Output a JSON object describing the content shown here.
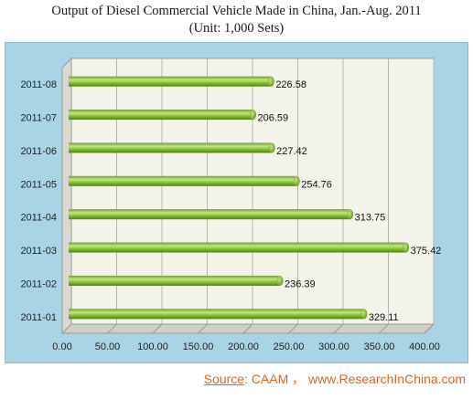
{
  "chart_data": {
    "type": "bar",
    "orientation": "horizontal",
    "title": "Output of Diesel Commercial Vehicle Made in China, Jan.-Aug. 2011",
    "subtitle": "(Unit: 1,000 Sets)",
    "categories": [
      "2011-08",
      "2011-07",
      "2011-06",
      "2011-05",
      "2011-04",
      "2011-03",
      "2011-02",
      "2011-01"
    ],
    "values": [
      226.58,
      206.59,
      227.42,
      254.76,
      313.75,
      375.42,
      236.39,
      329.11
    ],
    "value_labels": [
      "226.58",
      "206.59",
      "227.42",
      "254.76",
      "313.75",
      "375.42",
      "236.39",
      "329.11"
    ],
    "xlim": [
      0,
      400
    ],
    "xticks": [
      "0.00",
      "50.00",
      "100.00",
      "150.00",
      "200.00",
      "250.00",
      "300.00",
      "350.00",
      "400.00"
    ],
    "grid": true,
    "legend": "none",
    "colors": {
      "bar": "#8cc63f",
      "bar_dark": "#4f7f1c",
      "panel": "#a9d4e6",
      "plot_wall": "#f3f3ea",
      "source": "#e0641e"
    }
  },
  "source": {
    "label": "Source",
    "text": ":   CAAM  ，  www.ResearchInChina.com"
  }
}
